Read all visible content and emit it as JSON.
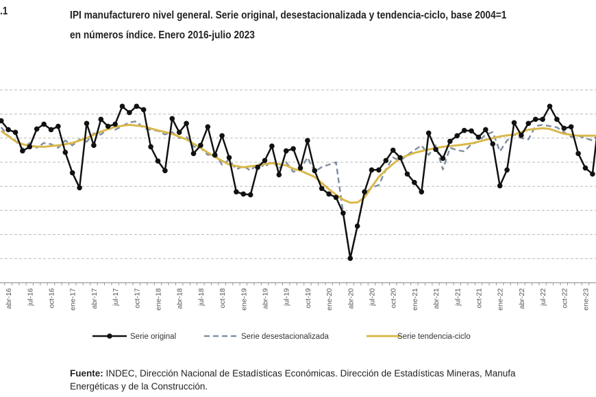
{
  "header": {
    "number": ".1",
    "title_line1": "IPI manufacturero nivel general. Serie original, desestacionalizada y tendencia-ciclo, base 2004=1",
    "title_line2": "en números índice. Enero 2016-julio 2023"
  },
  "footer": {
    "label": "Fuente:",
    "line1": " INDEC, Dirección Nacional de Estadísticas Económicas. Dirección de Estadísticas Mineras, Manufa",
    "line2": "Energéticas y de la Construcción."
  },
  "chart_data": {
    "type": "line",
    "title": "",
    "xlabel": "",
    "ylabel": "",
    "ylim": [
      80,
      160
    ],
    "grid": true,
    "legend_placement": "bottom",
    "x_start": "mar-16",
    "x": [
      "mar-16",
      "abr-16",
      "may-16",
      "jun-16",
      "jul-16",
      "ago-16",
      "sep-16",
      "oct-16",
      "nov-16",
      "dic-16",
      "ene-17",
      "feb-17",
      "mar-17",
      "abr-17",
      "may-17",
      "jun-17",
      "jul-17",
      "ago-17",
      "sep-17",
      "oct-17",
      "nov-17",
      "dic-17",
      "ene-18",
      "feb-18",
      "mar-18",
      "abr-18",
      "may-18",
      "jun-18",
      "jul-18",
      "ago-18",
      "sep-18",
      "oct-18",
      "nov-18",
      "dic-18",
      "ene-19",
      "feb-19",
      "mar-19",
      "abr-19",
      "may-19",
      "jun-19",
      "jul-19",
      "ago-19",
      "sep-19",
      "oct-19",
      "nov-19",
      "dic-19",
      "ene-20",
      "feb-20",
      "mar-20",
      "abr-20",
      "may-20",
      "jun-20",
      "jul-20",
      "ago-20",
      "sep-20",
      "oct-20",
      "nov-20",
      "dic-20",
      "ene-21",
      "feb-21",
      "mar-21",
      "abr-21",
      "may-21",
      "jun-21",
      "jul-21",
      "ago-21",
      "sep-21",
      "oct-21",
      "nov-21",
      "dic-21",
      "ene-22",
      "feb-22",
      "mar-22",
      "abr-22",
      "may-22",
      "jun-22",
      "jul-22",
      "ago-22",
      "sep-22",
      "oct-22",
      "nov-22",
      "dic-22",
      "ene-23",
      "feb-23",
      "mar-23"
    ],
    "tick_labels": [
      "abr-16",
      "jul-16",
      "oct-16",
      "ene-17",
      "abr-17",
      "jul-17",
      "oct-17",
      "ene-18",
      "abr-18",
      "jul-18",
      "oct-18",
      "ene-19",
      "abr-19",
      "jul-19",
      "oct-19",
      "ene-20",
      "abr-20",
      "jul-20",
      "oct-20",
      "ene-21",
      "abr-21",
      "jul-21",
      "oct-21",
      "ene-22",
      "abr-22",
      "jul-22",
      "oct-22",
      "ene-23"
    ],
    "series": [
      {
        "name": "Serie original",
        "color": "#111111",
        "style": "solid-markers",
        "values": [
          147.2,
          143.5,
          142.4,
          134.7,
          136.4,
          143.8,
          145.8,
          143.5,
          144.9,
          134.1,
          125.6,
          119.4,
          146.1,
          137.0,
          147.8,
          144.9,
          145.8,
          153.2,
          150.6,
          153.2,
          151.8,
          136.4,
          130.5,
          126.5,
          148.1,
          142.4,
          146.1,
          133.6,
          137.0,
          144.7,
          133.0,
          141.0,
          131.9,
          117.7,
          116.8,
          116.5,
          127.9,
          130.7,
          136.7,
          124.8,
          134.7,
          135.6,
          127.6,
          139.0,
          126.5,
          119.1,
          116.8,
          115.4,
          108.9,
          90.1,
          103.5,
          117.7,
          126.8,
          126.8,
          130.7,
          135.0,
          131.9,
          125.1,
          121.6,
          117.7,
          142.1,
          135.3,
          131.6,
          138.7,
          141.0,
          143.2,
          143.0,
          140.4,
          143.5,
          137.6,
          120.2,
          126.8,
          146.4,
          141.2,
          146.1,
          147.8,
          147.8,
          153.2,
          147.8,
          144.1,
          144.7,
          133.6,
          127.6,
          125.1,
          150.6
        ]
      },
      {
        "name": "Serie desestacionalizada",
        "color": "#7f8fa0",
        "style": "dashed",
        "values": [
          144.5,
          141,
          139,
          135.5,
          138,
          136,
          138,
          137.5,
          136,
          139,
          137,
          139.5,
          138.5,
          142,
          141.5,
          144,
          143.5,
          145,
          146.5,
          147,
          144,
          143.5,
          143,
          141.5,
          142.5,
          140,
          140.5,
          136.5,
          136,
          133,
          133.5,
          129,
          131,
          127,
          128.5,
          126.5,
          129.5,
          128,
          130.5,
          127.5,
          130,
          126,
          127,
          132,
          126,
          128,
          129,
          130,
          109,
          90.1,
          103.5,
          117,
          119.5,
          120.5,
          127,
          132,
          130.5,
          133,
          135,
          137,
          133,
          137,
          127,
          136,
          135,
          134.5,
          137.5,
          138.5,
          141.5,
          142.5,
          134.5,
          139,
          141.5,
          140,
          139.5,
          145,
          145.5,
          145,
          144.5,
          142.5,
          140.5,
          141,
          140,
          139,
          142
        ]
      },
      {
        "name": "Serie tendencia-ciclo",
        "color": "#d9b84a",
        "style": "solid",
        "values": [
          143,
          140.8,
          138.7,
          137.5,
          136.7,
          136.5,
          136.4,
          136.7,
          137,
          137.5,
          138,
          139,
          140,
          141.4,
          142.7,
          143.7,
          144.7,
          145.1,
          145.5,
          145.2,
          144.9,
          144,
          143.2,
          142.5,
          141.8,
          140.6,
          139.5,
          137.7,
          135.9,
          134,
          132.2,
          130.6,
          129,
          128.4,
          127.9,
          128.3,
          128.7,
          129.2,
          129.6,
          129.2,
          128.7,
          127.3,
          126.5,
          125.2,
          123.9,
          121.4,
          118.8,
          116.5,
          114.5,
          113.2,
          113.3,
          115.4,
          119.7,
          123.9,
          126.8,
          129.3,
          131.6,
          132.8,
          133.9,
          134.6,
          135.3,
          135.9,
          136.4,
          136.7,
          137,
          137.4,
          137.8,
          138.5,
          139.3,
          140,
          140.7,
          141.1,
          141.5,
          142.5,
          143.5,
          143.8,
          144.1,
          143.8,
          142.8,
          141.8,
          141.4,
          141,
          141,
          141,
          141
        ]
      }
    ]
  }
}
